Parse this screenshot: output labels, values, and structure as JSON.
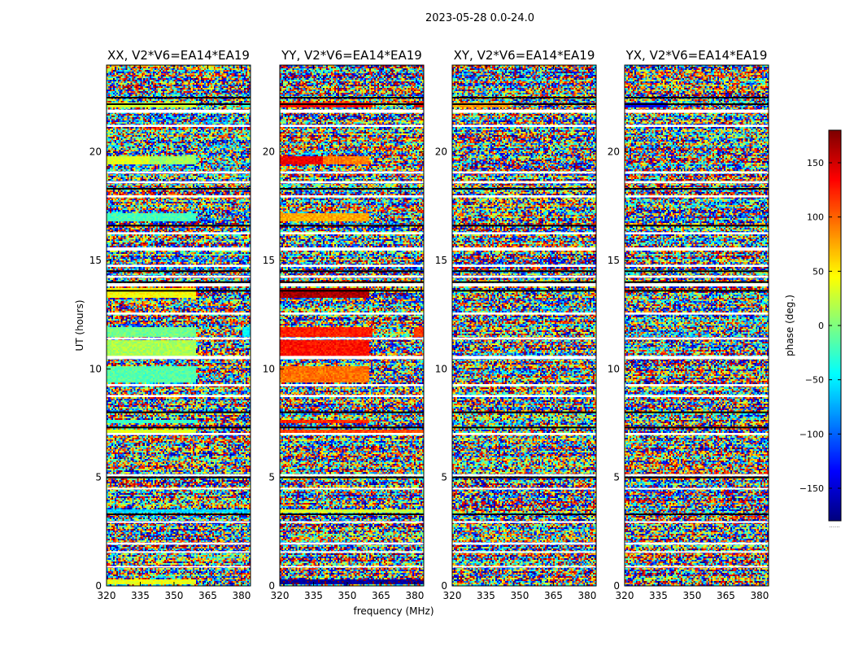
{
  "chart_data": {
    "type": "heatmap",
    "title": "2023-05-28 0.0-24.0",
    "xlabel": "frequency (MHz)",
    "ylabel": "UT (hours)",
    "xlim": [
      320,
      384
    ],
    "ylim": [
      0,
      24
    ],
    "x_ticks": [
      320,
      335,
      350,
      365,
      380
    ],
    "y_ticks": [
      0,
      5,
      10,
      15,
      20
    ],
    "panels": [
      {
        "title": "XX, V2*V6=EA14*EA19",
        "bands": [
          {
            "t0": 22.05,
            "t1": 22.3,
            "seg": [
              [
                0,
                62,
                30
              ],
              [
                62,
                95,
                null
              ],
              [
                95,
                100,
                -25
              ]
            ]
          },
          {
            "t0": 19.45,
            "t1": 19.8,
            "seg": [
              [
                0,
                30,
                35
              ],
              [
                30,
                62,
                10
              ],
              [
                62,
                100,
                null
              ]
            ]
          },
          {
            "t0": 16.8,
            "t1": 17.2,
            "seg": [
              [
                0,
                62,
                -20
              ],
              [
                62,
                100,
                null
              ]
            ]
          },
          {
            "t0": 13.3,
            "t1": 13.7,
            "seg": [
              [
                0,
                62,
                45
              ],
              [
                62,
                100,
                null
              ]
            ]
          },
          {
            "t0": 11.5,
            "t1": 11.9,
            "seg": [
              [
                0,
                62,
                -5
              ],
              [
                62,
                94,
                null
              ],
              [
                94,
                100,
                -50
              ]
            ]
          },
          {
            "t0": 10.6,
            "t1": 11.3,
            "seg": [
              [
                0,
                62,
                15
              ],
              [
                62,
                100,
                null
              ]
            ]
          },
          {
            "t0": 9.4,
            "t1": 10.1,
            "seg": [
              [
                0,
                62,
                -15
              ],
              [
                62,
                100,
                null
              ]
            ]
          },
          {
            "t0": 7.5,
            "t1": 7.65,
            "seg": [
              [
                0,
                62,
                -25
              ],
              [
                62,
                100,
                null
              ]
            ]
          },
          {
            "t0": 7.0,
            "t1": 7.2,
            "seg": [
              [
                0,
                62,
                35
              ],
              [
                62,
                100,
                null
              ]
            ]
          },
          {
            "t0": 3.35,
            "t1": 3.5,
            "seg": [
              [
                0,
                100,
                -60
              ]
            ]
          },
          {
            "t0": 0.1,
            "t1": 0.3,
            "seg": [
              [
                0,
                62,
                40
              ],
              [
                62,
                100,
                null
              ]
            ]
          }
        ]
      },
      {
        "title": "YY, V2*V6=EA14*EA19",
        "bands": [
          {
            "t0": 22.05,
            "t1": 22.3,
            "seg": [
              [
                0,
                64,
                135
              ],
              [
                64,
                93,
                null
              ],
              [
                93,
                100,
                150
              ]
            ]
          },
          {
            "t0": 19.45,
            "t1": 19.8,
            "seg": [
              [
                0,
                30,
                140
              ],
              [
                30,
                62,
                90
              ],
              [
                62,
                100,
                null
              ]
            ]
          },
          {
            "t0": 16.8,
            "t1": 17.2,
            "seg": [
              [
                0,
                62,
                75
              ],
              [
                62,
                100,
                null
              ]
            ]
          },
          {
            "t0": 13.3,
            "t1": 13.7,
            "seg": [
              [
                0,
                62,
                165
              ],
              [
                62,
                100,
                null
              ]
            ]
          },
          {
            "t0": 11.5,
            "t1": 11.9,
            "seg": [
              [
                0,
                64,
                125
              ],
              [
                64,
                93,
                null
              ],
              [
                93,
                100,
                115
              ]
            ]
          },
          {
            "t0": 10.6,
            "t1": 11.3,
            "seg": [
              [
                0,
                62,
                130
              ],
              [
                62,
                100,
                null
              ]
            ]
          },
          {
            "t0": 9.4,
            "t1": 10.1,
            "seg": [
              [
                0,
                62,
                95
              ],
              [
                62,
                100,
                null
              ]
            ]
          },
          {
            "t0": 7.5,
            "t1": 7.65,
            "seg": [
              [
                0,
                62,
                120
              ],
              [
                62,
                100,
                null
              ]
            ]
          },
          {
            "t0": 7.0,
            "t1": 7.2,
            "seg": [
              [
                0,
                100,
                110
              ]
            ]
          },
          {
            "t0": 3.35,
            "t1": 3.5,
            "seg": [
              [
                0,
                62,
                30
              ],
              [
                62,
                100,
                25
              ]
            ]
          },
          {
            "t0": 0.1,
            "t1": 0.3,
            "seg": [
              [
                0,
                100,
                -170
              ]
            ]
          }
        ]
      },
      {
        "title": "XY, V2*V6=EA14*EA19",
        "bands": [
          {
            "t0": 22.05,
            "t1": 22.3,
            "seg": [
              [
                0,
                40,
                80
              ],
              [
                40,
                100,
                null
              ]
            ]
          }
        ]
      },
      {
        "title": "YX, V2*V6=EA14*EA19",
        "bands": [
          {
            "t0": 22.05,
            "t1": 22.3,
            "seg": [
              [
                0,
                30,
                -140
              ],
              [
                30,
                100,
                null
              ]
            ]
          }
        ]
      }
    ],
    "gaps": [
      [
        21.8,
        21.95
      ],
      [
        21.15,
        21.25
      ],
      [
        19.0,
        19.1
      ],
      [
        18.55,
        18.65
      ],
      [
        17.9,
        18.0
      ],
      [
        16.2,
        16.3
      ],
      [
        15.45,
        15.6
      ],
      [
        14.7,
        14.8
      ],
      [
        14.2,
        14.3
      ],
      [
        13.8,
        13.95
      ],
      [
        12.5,
        12.6
      ],
      [
        11.35,
        11.45
      ],
      [
        10.45,
        10.6
      ],
      [
        9.2,
        9.3
      ],
      [
        8.7,
        8.8
      ],
      [
        6.95,
        7.05
      ],
      [
        5.05,
        5.15
      ],
      [
        4.45,
        4.52
      ],
      [
        2.9,
        2.98
      ],
      [
        1.9,
        2.0
      ],
      [
        1.55,
        1.6
      ],
      [
        0.85,
        0.92
      ]
    ],
    "dark_lines": [
      22.5,
      22.2,
      18.3,
      16.6,
      14.5,
      14.0,
      13.6,
      8.0,
      7.3,
      5.0,
      3.3
    ],
    "colorbar": {
      "label": "phase (deg.)",
      "range": [
        -180,
        180
      ],
      "ticks": [
        150,
        100,
        50,
        0,
        -50,
        -100,
        -150
      ],
      "tick_labels": [
        "150",
        "100",
        "50",
        "0",
        "−50",
        "−100",
        "−150"
      ],
      "colormap": "jet",
      "footnote": "......"
    }
  }
}
